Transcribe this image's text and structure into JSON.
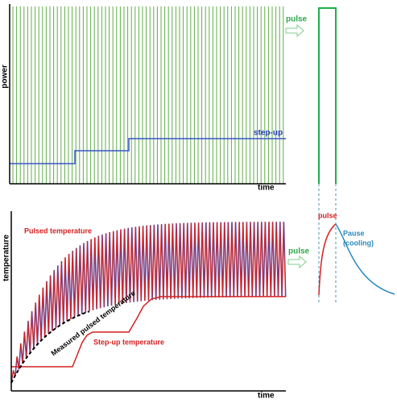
{
  "top_panel": {
    "y_label": "power",
    "x_label": "time",
    "step_label": "step-up"
  },
  "top_side": {
    "arrow_label": "pulse"
  },
  "bottom_panel": {
    "y_label": "temperature",
    "x_label": "time",
    "pulsed_label": "Pulsed temperature",
    "measured_label": "Measured pulsed temperature",
    "step_label": "Step-up temperature"
  },
  "bottom_side": {
    "arrow_label": "pulse",
    "pulse_label": "pulse",
    "pause_label": [
      "Pause",
      "(cooling)"
    ]
  }
}
